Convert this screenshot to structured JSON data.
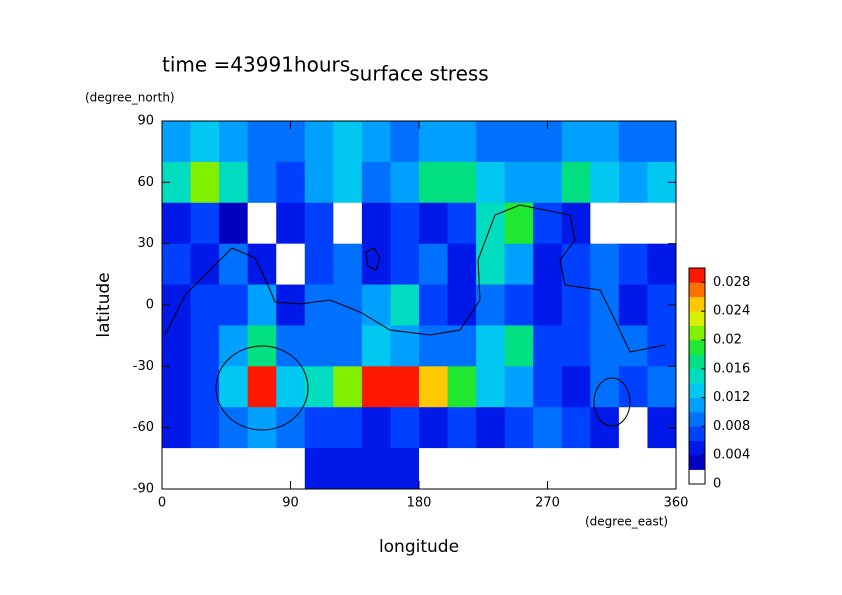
{
  "chart_data": {
    "type": "contour",
    "title": "surface stress",
    "subtitle": "time =43991hours",
    "xlabel": "longitude",
    "xunit": "(degree_east)",
    "ylabel": "latitude",
    "yunit": "(degree_north)",
    "xlim": [
      0,
      360
    ],
    "xticks": [
      0,
      90,
      180,
      270,
      360
    ],
    "ylim": [
      -90,
      90
    ],
    "yticks": [
      -90,
      -60,
      -30,
      0,
      30,
      60,
      90
    ],
    "x": [
      10,
      30,
      50,
      70,
      90,
      110,
      130,
      150,
      170,
      190,
      210,
      230,
      250,
      270,
      290,
      310,
      330,
      350
    ],
    "y": [
      80,
      60,
      40,
      20,
      0,
      -20,
      -40,
      -60,
      -80
    ],
    "z": [
      [
        0.01,
        0.012,
        0.01,
        0.008,
        0.008,
        0.01,
        0.012,
        0.01,
        0.008,
        0.01,
        0.01,
        0.008,
        0.008,
        0.008,
        0.01,
        0.01,
        0.008,
        0.008
      ],
      [
        0.014,
        0.02,
        0.014,
        0.008,
        0.006,
        0.01,
        0.012,
        0.008,
        0.01,
        0.016,
        0.016,
        0.012,
        0.01,
        0.01,
        0.016,
        0.012,
        0.01,
        0.012
      ],
      [
        0.004,
        0.006,
        0.002,
        0.001,
        0.004,
        0.006,
        0.001,
        0.004,
        0.006,
        0.004,
        0.006,
        0.014,
        0.018,
        0.006,
        0.004,
        0.001,
        0.001,
        0.001
      ],
      [
        0.006,
        0.004,
        0.008,
        0.004,
        0.001,
        0.006,
        0.008,
        0.004,
        0.006,
        0.008,
        0.004,
        0.014,
        0.01,
        0.004,
        0.006,
        0.008,
        0.006,
        0.004
      ],
      [
        0.004,
        0.006,
        0.006,
        0.01,
        0.004,
        0.008,
        0.008,
        0.01,
        0.014,
        0.006,
        0.004,
        0.008,
        0.006,
        0.004,
        0.006,
        0.008,
        0.004,
        0.006
      ],
      [
        0.004,
        0.006,
        0.01,
        0.016,
        0.008,
        0.008,
        0.008,
        0.012,
        0.01,
        0.008,
        0.008,
        0.012,
        0.016,
        0.006,
        0.006,
        0.008,
        0.008,
        0.006
      ],
      [
        0.004,
        0.006,
        0.012,
        0.028,
        0.012,
        0.014,
        0.02,
        0.03,
        0.03,
        0.024,
        0.018,
        0.012,
        0.01,
        0.006,
        0.004,
        0.008,
        0.006,
        0.008
      ],
      [
        0.004,
        0.006,
        0.008,
        0.01,
        0.008,
        0.006,
        0.006,
        0.004,
        0.006,
        0.004,
        0.006,
        0.004,
        0.006,
        0.008,
        0.006,
        0.004,
        0.001,
        0.004
      ],
      [
        0.001,
        0.001,
        0.001,
        0.001,
        0.001,
        0.004,
        0.004,
        0.004,
        0.004,
        0.001,
        0.001,
        0.001,
        0.001,
        0.001,
        0.001,
        0.001,
        0.001,
        0.001
      ]
    ],
    "levels": [
      0,
      0.002,
      0.004,
      0.006,
      0.008,
      0.01,
      0.012,
      0.014,
      0.016,
      0.018,
      0.02,
      0.022,
      0.024,
      0.026,
      0.028,
      0.03
    ],
    "colors": [
      "#ffffff",
      "#0000c0",
      "#0018e8",
      "#0040ff",
      "#0070ff",
      "#00a0ff",
      "#00c8f0",
      "#00dcc0",
      "#00e080",
      "#20e830",
      "#80f000",
      "#d8f000",
      "#ffc800",
      "#ff7000",
      "#ff1800"
    ],
    "cticks": [
      0,
      0.004,
      0.008,
      0.012,
      0.016,
      0.02,
      0.024,
      0.028
    ]
  }
}
